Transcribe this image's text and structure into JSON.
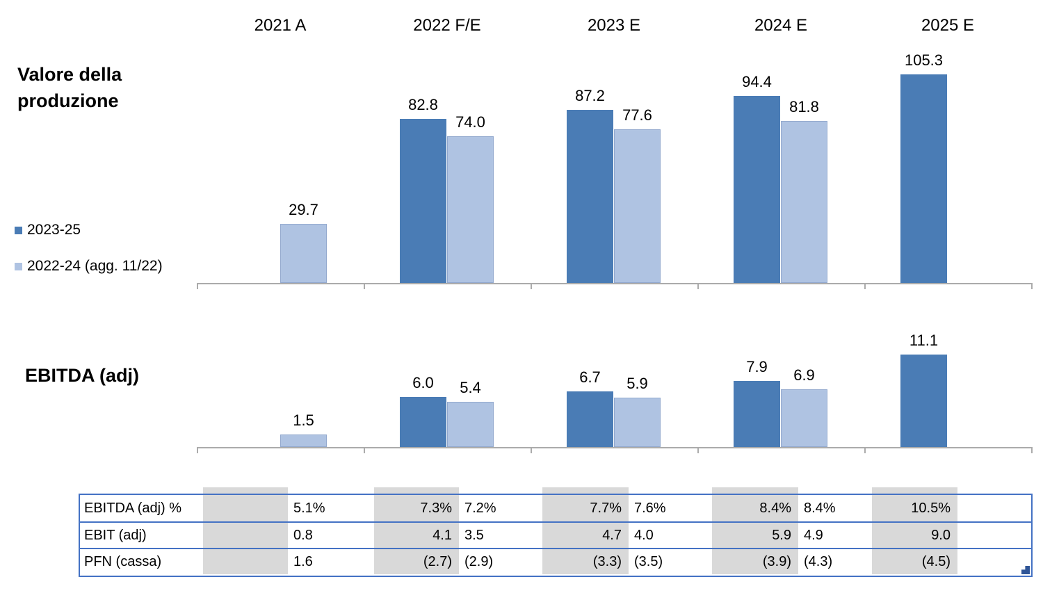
{
  "colors": {
    "series_dark": "#4A7CB5",
    "series_light": "#AFC3E2",
    "series_light_border": "#93A9CE",
    "axis": "#ABABAB",
    "table_border": "#4472C4",
    "table_gray": "#D9D9D9",
    "fill_handle": "#2F5597"
  },
  "legend": [
    {
      "label": "2023-25",
      "series": "dark"
    },
    {
      "label": "2022-24 (agg. 11/22)",
      "series": "light"
    }
  ],
  "chart_data": [
    {
      "type": "bar",
      "title": "Valore della produzione",
      "categories": [
        "2021 A",
        "2022 F/E",
        "2023 E",
        "2024 E",
        "2025 E"
      ],
      "series": [
        {
          "name": "2023-25",
          "values": [
            null,
            82.8,
            87.2,
            94.4,
            105.3
          ]
        },
        {
          "name": "2022-24 (agg. 11/22)",
          "values": [
            29.7,
            74.0,
            77.6,
            81.8,
            null
          ]
        }
      ],
      "value_label_decimals": 1,
      "ylim": [
        0,
        120
      ],
      "grid": false,
      "legend_position": "left",
      "xlabel": "",
      "ylabel": ""
    },
    {
      "type": "bar",
      "title": "EBITDA (adj)",
      "categories": [
        "2021 A",
        "2022 F/E",
        "2023 E",
        "2024 E",
        "2025 E"
      ],
      "series": [
        {
          "name": "2023-25",
          "values": [
            null,
            6.0,
            6.7,
            7.9,
            11.1
          ]
        },
        {
          "name": "2022-24 (agg. 11/22)",
          "values": [
            1.5,
            5.4,
            5.9,
            6.9,
            null
          ]
        }
      ],
      "value_label_decimals": 1,
      "ylim": [
        0,
        13.5
      ],
      "grid": false,
      "legend_position": "none",
      "xlabel": "",
      "ylabel": ""
    }
  ],
  "table": {
    "rows": [
      {
        "label": "EBITDA (adj) %",
        "cells": [
          [
            "",
            "5.1%"
          ],
          [
            "7.3%",
            "7.2%"
          ],
          [
            "7.7%",
            "7.6%"
          ],
          [
            "8.4%",
            "8.4%"
          ],
          [
            "10.5%",
            ""
          ]
        ]
      },
      {
        "label": "EBIT (adj)",
        "cells": [
          [
            "",
            "0.8"
          ],
          [
            "4.1",
            "3.5"
          ],
          [
            "4.7",
            "4.0"
          ],
          [
            "5.9",
            "4.9"
          ],
          [
            "9.0",
            ""
          ]
        ]
      },
      {
        "label": "PFN (cassa)",
        "cells": [
          [
            "",
            "1.6"
          ],
          [
            "(2.7)",
            "(2.9)"
          ],
          [
            "(3.3)",
            "(3.5)"
          ],
          [
            "(3.9)",
            "(4.3)"
          ],
          [
            "(4.5)",
            ""
          ]
        ]
      }
    ]
  }
}
